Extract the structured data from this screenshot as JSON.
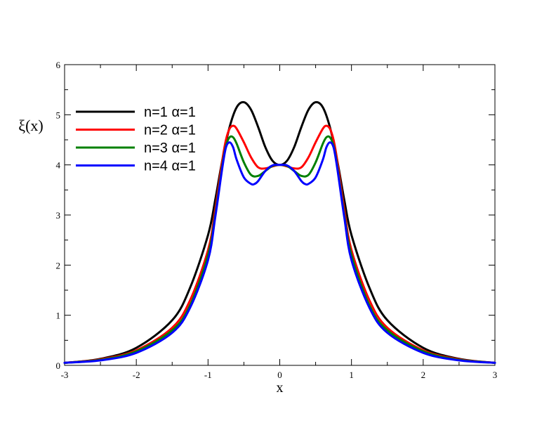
{
  "chart_data": {
    "type": "line",
    "title": "",
    "xlabel": "x",
    "ylabel": "ξ(x)",
    "xlim": [
      -3,
      3
    ],
    "ylim": [
      0,
      6
    ],
    "grid": false,
    "legend_placement": "top-left",
    "x_ticks": [
      "-3",
      "-2",
      "-1",
      "0",
      "1",
      "2",
      "3"
    ],
    "y_ticks": [
      "0",
      "1",
      "2",
      "3",
      "4",
      "5",
      "6"
    ],
    "series": [
      {
        "name": "n=1 α=1",
        "color": "#000000",
        "x": [
          -3,
          -2.5,
          -2,
          -1.5,
          -1.25,
          -1,
          -0.9,
          -0.8,
          -0.7,
          -0.6,
          -0.5,
          -0.4,
          -0.3,
          -0.2,
          -0.1,
          0,
          0.1,
          0.2,
          0.3,
          0.4,
          0.5,
          0.6,
          0.7,
          0.8,
          0.9,
          1,
          1.25,
          1.5,
          2,
          2.5,
          3
        ],
        "y": [
          0.05,
          0.13,
          0.35,
          0.9,
          1.55,
          2.6,
          3.3,
          4.1,
          4.75,
          5.15,
          5.25,
          5.1,
          4.75,
          4.35,
          4.08,
          4.0,
          4.08,
          4.35,
          4.75,
          5.1,
          5.25,
          5.15,
          4.75,
          4.1,
          3.3,
          2.6,
          1.55,
          0.9,
          0.35,
          0.13,
          0.05
        ]
      },
      {
        "name": "n=2 α=1",
        "color": "#ff0000",
        "x": [
          -3,
          -2.5,
          -2,
          -1.5,
          -1.25,
          -1,
          -0.9,
          -0.8,
          -0.75,
          -0.7,
          -0.65,
          -0.6,
          -0.5,
          -0.4,
          -0.3,
          -0.2,
          -0.1,
          0,
          0.1,
          0.2,
          0.3,
          0.4,
          0.5,
          0.6,
          0.65,
          0.7,
          0.75,
          0.8,
          0.9,
          1,
          1.25,
          1.5,
          2,
          2.5,
          3
        ],
        "y": [
          0.05,
          0.12,
          0.3,
          0.75,
          1.3,
          2.3,
          3.1,
          4.1,
          4.5,
          4.72,
          4.78,
          4.72,
          4.45,
          4.15,
          3.95,
          3.93,
          3.97,
          4.0,
          3.97,
          3.93,
          3.95,
          4.15,
          4.45,
          4.72,
          4.78,
          4.72,
          4.5,
          4.1,
          3.1,
          2.3,
          1.3,
          0.75,
          0.3,
          0.12,
          0.05
        ]
      },
      {
        "name": "n=3 α=1",
        "color": "#008000",
        "x": [
          -3,
          -2.5,
          -2,
          -1.5,
          -1.25,
          -1,
          -0.9,
          -0.8,
          -0.75,
          -0.7,
          -0.65,
          -0.6,
          -0.5,
          -0.4,
          -0.3,
          -0.2,
          -0.1,
          0,
          0.1,
          0.2,
          0.3,
          0.4,
          0.5,
          0.6,
          0.65,
          0.7,
          0.75,
          0.8,
          0.9,
          1,
          1.25,
          1.5,
          2,
          2.5,
          3
        ],
        "y": [
          0.05,
          0.11,
          0.28,
          0.7,
          1.2,
          2.2,
          3.0,
          4.0,
          4.38,
          4.55,
          4.55,
          4.42,
          4.05,
          3.8,
          3.78,
          3.88,
          3.98,
          4.0,
          3.98,
          3.88,
          3.78,
          3.8,
          4.05,
          4.42,
          4.55,
          4.55,
          4.38,
          4.0,
          3.0,
          2.2,
          1.2,
          0.7,
          0.28,
          0.11,
          0.05
        ]
      },
      {
        "name": "n=4 α=1",
        "color": "#0000ff",
        "x": [
          -3,
          -2.5,
          -2,
          -1.5,
          -1.25,
          -1,
          -0.9,
          -0.8,
          -0.75,
          -0.7,
          -0.65,
          -0.6,
          -0.5,
          -0.4,
          -0.35,
          -0.3,
          -0.2,
          -0.1,
          0,
          0.1,
          0.2,
          0.3,
          0.35,
          0.4,
          0.5,
          0.6,
          0.65,
          0.7,
          0.75,
          0.8,
          0.9,
          1,
          1.25,
          1.5,
          2,
          2.5,
          3
        ],
        "y": [
          0.05,
          0.1,
          0.25,
          0.65,
          1.15,
          2.1,
          2.95,
          3.95,
          4.35,
          4.45,
          4.35,
          4.1,
          3.75,
          3.62,
          3.62,
          3.68,
          3.88,
          3.99,
          4.0,
          3.99,
          3.88,
          3.68,
          3.62,
          3.62,
          3.75,
          4.1,
          4.35,
          4.45,
          4.35,
          3.95,
          2.95,
          2.1,
          1.15,
          0.65,
          0.25,
          0.1,
          0.05
        ]
      }
    ]
  }
}
